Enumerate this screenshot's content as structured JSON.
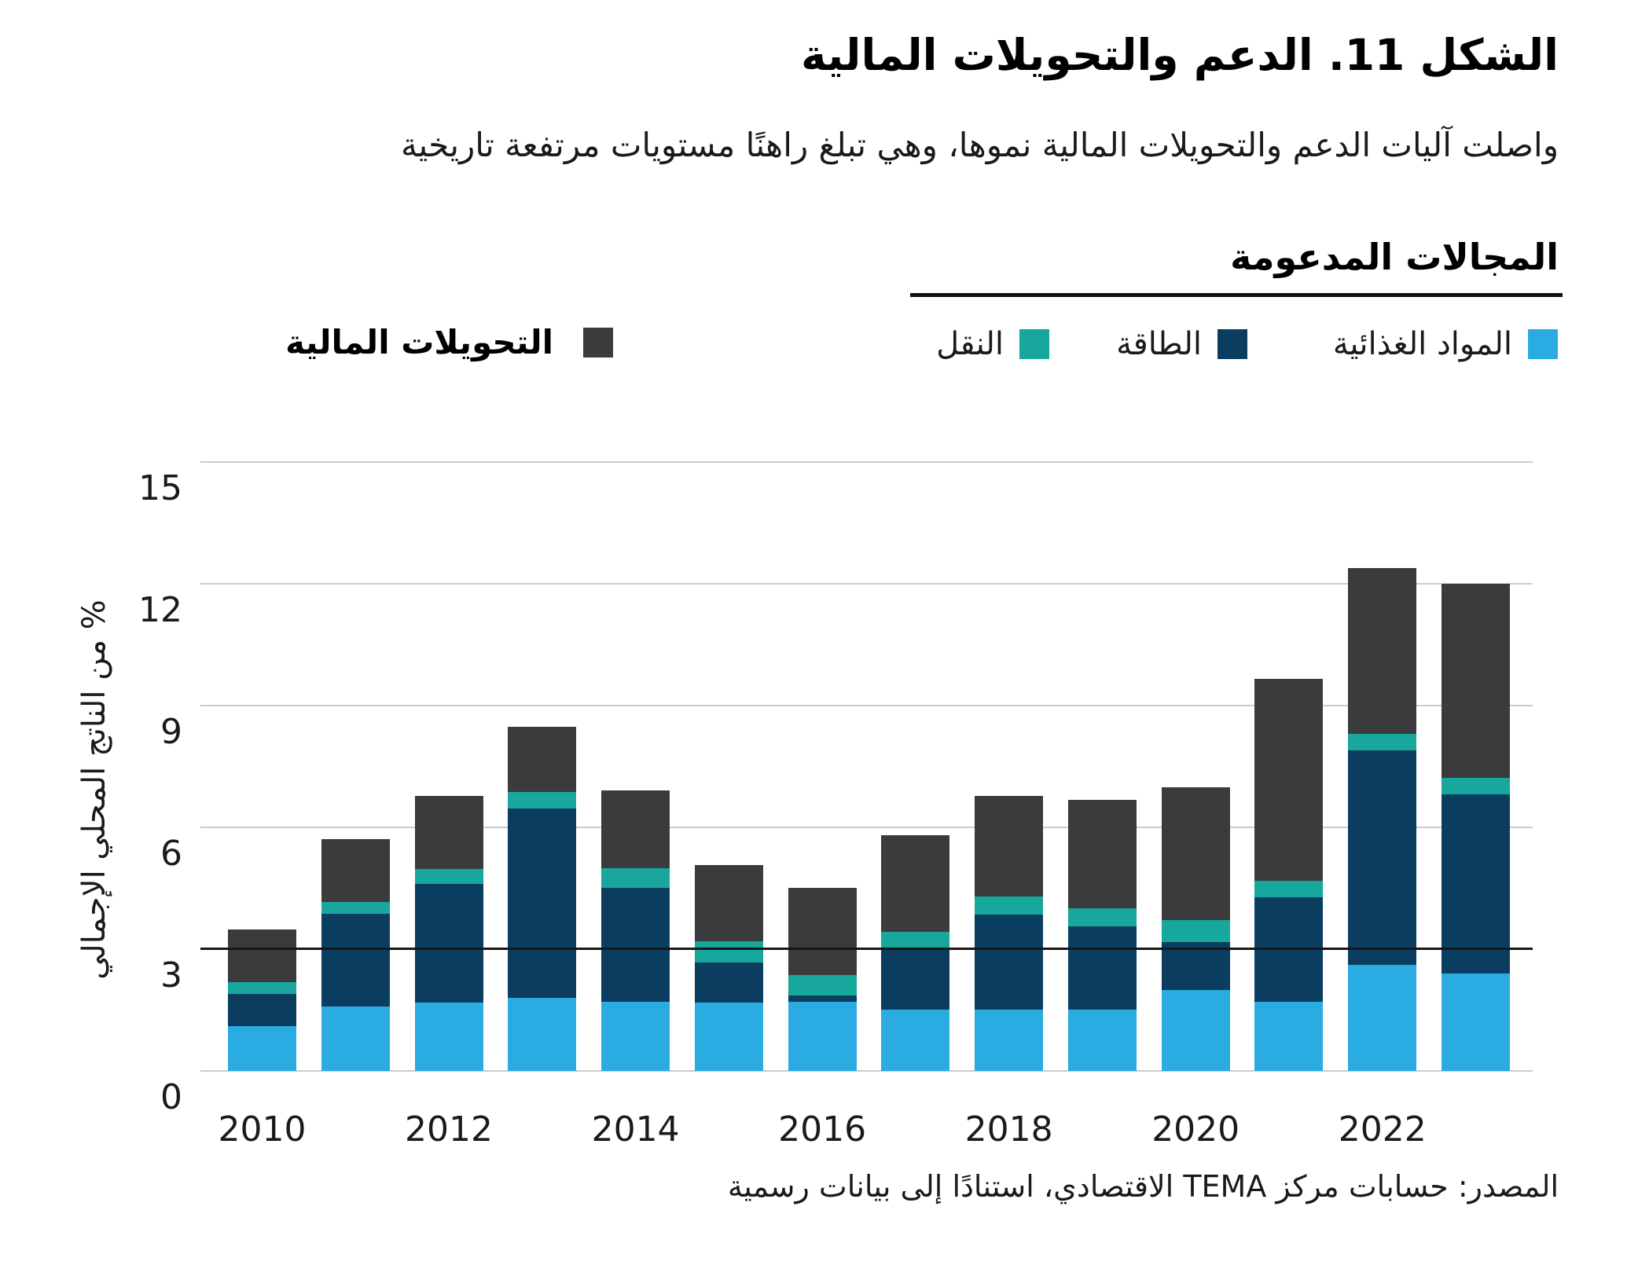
{
  "figure": {
    "title": "الشكل 11. الدعم والتحويلات المالية",
    "subtitle": "واصلت آليات الدعم والتحويلات المالية نموها، وهي تبلغ راهنًا مستويات مرتفعة تاريخية",
    "source": "المصدر: حسابات مركز TEMA الاقتصادي، استنادًا إلى بيانات رسمية"
  },
  "legend": {
    "group_title": "المجالات المدعومة",
    "transfers_label": "التحويلات المالية",
    "transfers_color": "#3B3B3D",
    "items": [
      {
        "label": "المواد الغذائية",
        "color": "#2AABE2"
      },
      {
        "label": "الطاقة",
        "color": "#0B3D60"
      },
      {
        "label": "النقل",
        "color": "#17A79C"
      }
    ]
  },
  "chart_data": {
    "type": "bar",
    "stacked": true,
    "title": "الشكل 11. الدعم والتحويلات المالية",
    "xlabel": "",
    "ylabel": "% من الناتج المحلي الإجمالي",
    "ylim": [
      0,
      15
    ],
    "yticks": [
      0,
      3,
      6,
      9,
      12,
      15
    ],
    "grid": true,
    "reference_line_y": 3,
    "legend_position": "top",
    "categories": [
      2010,
      2011,
      2012,
      2013,
      2014,
      2015,
      2016,
      2017,
      2018,
      2019,
      2020,
      2021,
      2022,
      2023
    ],
    "x_tick_labels": [
      "2010",
      "2012",
      "2014",
      "2016",
      "2018",
      "2020",
      "2022"
    ],
    "x_tick_indices": [
      0,
      2,
      4,
      6,
      8,
      10,
      12
    ],
    "series": [
      {
        "name": "المواد الغذائية",
        "key": "food",
        "color": "#2AABE2",
        "values": [
          1.1,
          1.59,
          1.68,
          1.8,
          1.7,
          1.68,
          1.7,
          1.5,
          1.5,
          1.5,
          2.0,
          1.7,
          2.61,
          2.4
        ]
      },
      {
        "name": "الطاقة",
        "key": "energy",
        "color": "#0B3D60",
        "values": [
          0.79,
          2.28,
          2.92,
          4.67,
          2.8,
          0.99,
          0.16,
          1.53,
          2.36,
          2.07,
          1.18,
          2.57,
          5.29,
          4.42
        ]
      },
      {
        "name": "النقل",
        "key": "transport",
        "color": "#17A79C",
        "values": [
          0.29,
          0.3,
          0.38,
          0.4,
          0.5,
          0.53,
          0.5,
          0.39,
          0.44,
          0.44,
          0.54,
          0.41,
          0.41,
          0.4
        ]
      },
      {
        "name": "التحويلات المالية",
        "key": "transfers",
        "color": "#3B3B3D",
        "values": [
          1.3,
          1.53,
          1.8,
          1.61,
          1.91,
          1.88,
          2.14,
          2.38,
          2.47,
          2.67,
          3.26,
          4.97,
          4.08,
          4.77
        ]
      }
    ],
    "totals": [
      3.48,
      5.7,
      6.78,
      8.48,
      6.91,
      5.08,
      4.5,
      5.8,
      6.77,
      6.68,
      6.98,
      9.65,
      12.39,
      11.99
    ]
  }
}
